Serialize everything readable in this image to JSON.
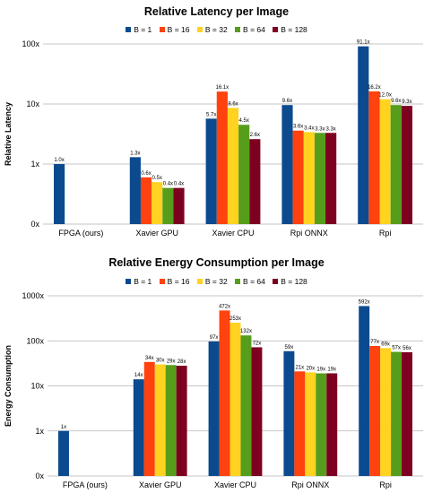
{
  "chart_data": [
    {
      "type": "bar",
      "title": "Relative Latency per Image",
      "xlabel": "",
      "ylabel": "Relative Latency",
      "yscale": "log",
      "ylim": [
        0.1,
        100
      ],
      "yticks": [
        {
          "value": 0.1,
          "label": "0x"
        },
        {
          "value": 1,
          "label": "1x"
        },
        {
          "value": 10,
          "label": "10x"
        },
        {
          "value": 100,
          "label": "100x"
        }
      ],
      "grid": true,
      "legend_position": "top-center",
      "categories": [
        "FPGA (ours)",
        "Xavier GPU",
        "Xavier CPU",
        "Rpi ONNX",
        "Rpi"
      ],
      "series": [
        {
          "name": "B = 1",
          "color": "#0b4a8f",
          "values": [
            1.0,
            1.3,
            5.7,
            9.6,
            91.1
          ],
          "labels": [
            "1.0x",
            "1.3x",
            "5.7x",
            "9.6x",
            "91.1x"
          ]
        },
        {
          "name": "B = 16",
          "color": "#ff420e",
          "values": [
            null,
            0.6,
            16.1,
            3.6,
            16.2
          ],
          "labels": [
            null,
            "0.6x",
            "16.1x",
            "3.6x",
            "16.2x"
          ]
        },
        {
          "name": "B = 32",
          "color": "#ffd320",
          "values": [
            null,
            0.5,
            8.6,
            3.4,
            12.0
          ],
          "labels": [
            null,
            "0.5x",
            "8.6x",
            "3.4x",
            "12.0x"
          ]
        },
        {
          "name": "B = 64",
          "color": "#579d1c",
          "values": [
            null,
            0.4,
            4.5,
            3.3,
            9.6
          ],
          "labels": [
            null,
            "0.4x",
            "4.5x",
            "3.3x",
            "9.6x"
          ]
        },
        {
          "name": "B = 128",
          "color": "#7e0021",
          "values": [
            null,
            0.4,
            2.6,
            3.3,
            9.3
          ],
          "labels": [
            null,
            "0.4x",
            "2.6x",
            "3.3x",
            "9.3x"
          ]
        }
      ]
    },
    {
      "type": "bar",
      "title": "Relative Energy Consumption per Image",
      "xlabel": "",
      "ylabel": "Energy Consumption",
      "yscale": "log",
      "ylim": [
        0.1,
        1000
      ],
      "yticks": [
        {
          "value": 0.1,
          "label": "0x"
        },
        {
          "value": 1,
          "label": "1x"
        },
        {
          "value": 10,
          "label": "10x"
        },
        {
          "value": 100,
          "label": "100x"
        },
        {
          "value": 1000,
          "label": "1000x"
        }
      ],
      "grid": true,
      "legend_position": "top-center",
      "categories": [
        "FPGA (ours)",
        "Xavier GPU",
        "Xavier CPU",
        "Rpi ONNX",
        "Rpi"
      ],
      "series": [
        {
          "name": "B = 1",
          "color": "#0b4a8f",
          "values": [
            1,
            14,
            97,
            59,
            592
          ],
          "labels": [
            "1x",
            "14x",
            "97x",
            "59x",
            "592x"
          ]
        },
        {
          "name": "B = 16",
          "color": "#ff420e",
          "values": [
            null,
            34,
            472,
            21,
            77
          ],
          "labels": [
            null,
            "34x",
            "472x",
            "21x",
            "77x"
          ]
        },
        {
          "name": "B = 32",
          "color": "#ffd320",
          "values": [
            null,
            30,
            253,
            20,
            69
          ],
          "labels": [
            null,
            "30x",
            "253x",
            "20x",
            "69x"
          ]
        },
        {
          "name": "B = 64",
          "color": "#579d1c",
          "values": [
            null,
            29,
            132,
            19,
            57
          ],
          "labels": [
            null,
            "29x",
            "132x",
            "19x",
            "57x"
          ]
        },
        {
          "name": "B = 128",
          "color": "#7e0021",
          "values": [
            null,
            28,
            72,
            19,
            56
          ],
          "labels": [
            null,
            "28x",
            "72x",
            "19x",
            "56x"
          ]
        }
      ]
    }
  ]
}
